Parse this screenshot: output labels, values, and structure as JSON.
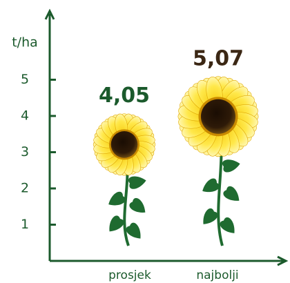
{
  "chart_data": {
    "type": "sunflower",
    "y_label": "t/ha",
    "categories": [
      "prosjek",
      "najbolji"
    ],
    "values": [
      4.05,
      5.07
    ],
    "value_labels": [
      "4,05",
      "5,07"
    ],
    "label_colors": [
      "#1b5a2c",
      "#3b2714"
    ],
    "axis_color": "#1b5a2c",
    "ylim": [
      0,
      6
    ],
    "yticks": [
      1,
      2,
      3,
      4,
      5
    ]
  }
}
